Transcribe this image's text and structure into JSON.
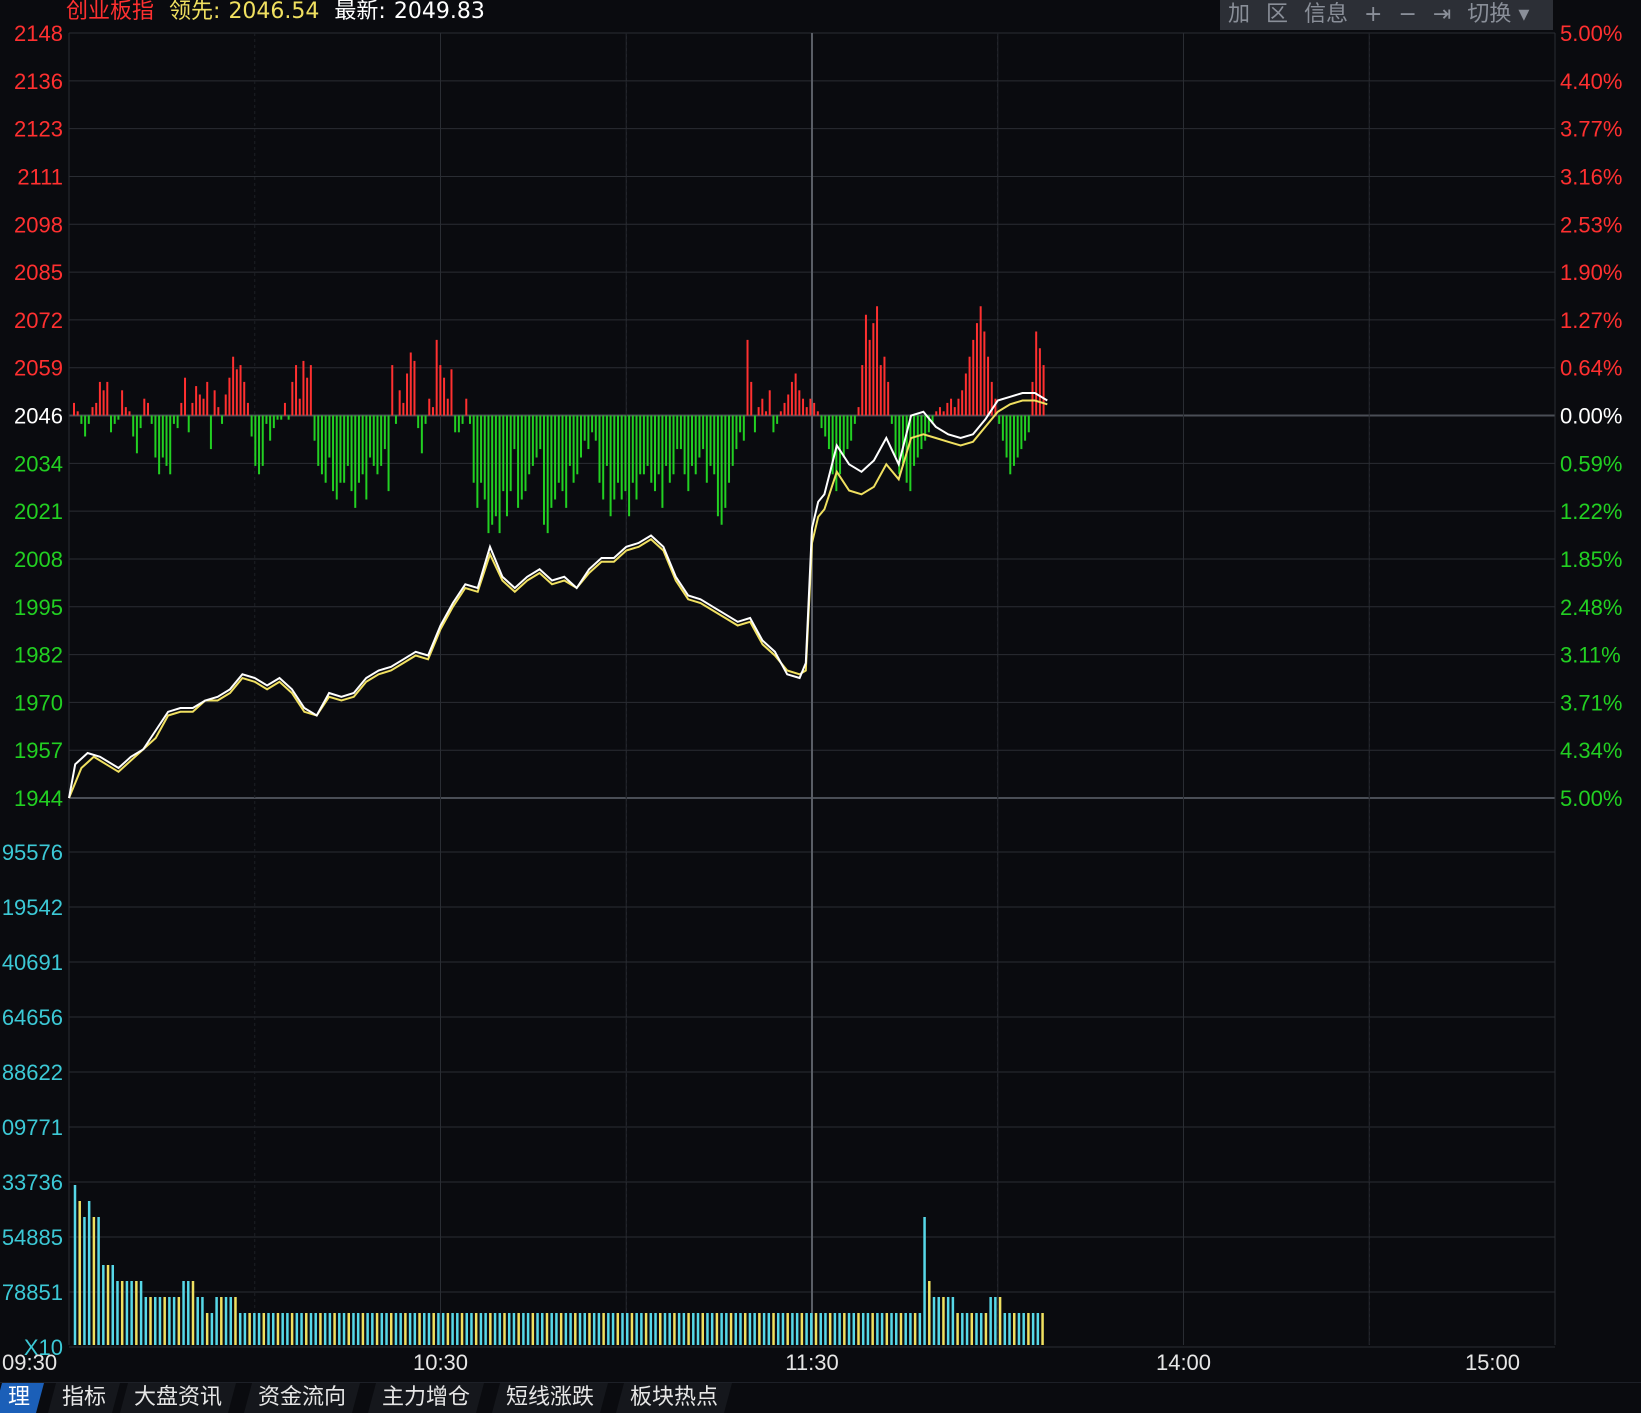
{
  "header": {
    "index_name": "创业板指",
    "lead_label": "领先:",
    "lead_value": "2046.54",
    "latest_label": "最新:",
    "latest_value": "2049.83"
  },
  "toolbar": {
    "items": [
      "加",
      "区",
      "信息",
      "+",
      "−",
      "⇥",
      "切换 ▾"
    ]
  },
  "tabs": [
    "理",
    "指标",
    "大盘资讯",
    "资金流向",
    "主力增仓",
    "短线涨跌",
    "板块热点"
  ],
  "colors": {
    "up": "#ff3030",
    "down": "#22d022",
    "price_line": "#ffffff",
    "lead_line": "#f0e060",
    "volume_cyan": "#57d8e8",
    "volume_yellow": "#f0e060",
    "grid": "#2a2d33",
    "volume_label": "#3cc9d6"
  },
  "chart_data": {
    "type": "line",
    "title": "创业板指",
    "price_axis_left": [
      "2148",
      "2136",
      "2123",
      "2111",
      "2098",
      "2085",
      "2072",
      "2059",
      "2046",
      "2034",
      "2021",
      "2008",
      "1995",
      "1982",
      "1970",
      "1957",
      "1944"
    ],
    "pct_axis_right": [
      "5.00%",
      "4.40%",
      "3.77%",
      "3.16%",
      "2.53%",
      "1.90%",
      "1.27%",
      "0.64%",
      "0.00%",
      "0.59%",
      "1.22%",
      "1.85%",
      "2.48%",
      "3.11%",
      "3.71%",
      "4.34%",
      "5.00%"
    ],
    "volume_axis": [
      "95576",
      "19542",
      "40691",
      "64656",
      "88622",
      "09771",
      "33736",
      "54885",
      "78851",
      "X10"
    ],
    "x_ticks": [
      "09:30",
      "10:30",
      "11:30",
      "14:00",
      "15:00"
    ],
    "price_range": [
      1944,
      2148
    ],
    "prev_close": 2046,
    "grid": true,
    "price_series": {
      "name": "最新",
      "minutes": [
        0,
        1,
        3,
        5,
        8,
        10,
        12,
        14,
        16,
        18,
        20,
        22,
        24,
        26,
        28,
        30,
        32,
        34,
        36,
        38,
        40,
        42,
        44,
        46,
        48,
        50,
        52,
        54,
        56,
        58,
        60,
        62,
        64,
        66,
        68,
        70,
        72,
        74,
        76,
        78,
        80,
        82,
        84,
        86,
        88,
        90,
        92,
        94,
        96,
        98,
        100,
        102,
        104,
        106,
        108,
        110,
        112,
        114,
        116,
        118,
        119,
        120,
        121,
        122,
        124,
        126,
        128,
        130,
        132,
        134,
        136,
        138,
        140,
        142,
        144,
        146,
        148,
        150,
        152,
        154,
        156,
        158
      ],
      "values": [
        1944,
        1953,
        1956,
        1955,
        1952,
        1955,
        1957,
        1962,
        1967,
        1968,
        1968,
        1970,
        1971,
        1973,
        1977,
        1976,
        1974,
        1976,
        1973,
        1968,
        1966,
        1972,
        1971,
        1972,
        1976,
        1978,
        1979,
        1981,
        1983,
        1982,
        1990,
        1996,
        2001,
        2000,
        2011,
        2003,
        2000,
        2003,
        2005,
        2002,
        2003,
        2000,
        2005,
        2008,
        2008,
        2011,
        2012,
        2014,
        2011,
        2003,
        1998,
        1997,
        1995,
        1993,
        1991,
        1992,
        1986,
        1983,
        1977,
        1976,
        1980,
        2016,
        2023,
        2025,
        2038,
        2033,
        2031,
        2034,
        2040,
        2033,
        2046,
        2047,
        2043,
        2041,
        2040,
        2041,
        2045,
        2050,
        2051,
        2052,
        2052,
        2050
      ]
    },
    "lead_series": {
      "name": "领先",
      "minutes": [
        0,
        2,
        4,
        6,
        8,
        10,
        12,
        14,
        16,
        18,
        20,
        22,
        24,
        26,
        28,
        30,
        32,
        34,
        36,
        38,
        40,
        42,
        44,
        46,
        48,
        50,
        52,
        54,
        56,
        58,
        60,
        62,
        64,
        66,
        68,
        70,
        72,
        74,
        76,
        78,
        80,
        82,
        84,
        86,
        88,
        90,
        92,
        94,
        96,
        98,
        100,
        102,
        104,
        106,
        108,
        110,
        112,
        114,
        116,
        118,
        119,
        120,
        121,
        122,
        124,
        126,
        128,
        130,
        132,
        134,
        136,
        138,
        140,
        142,
        144,
        146,
        148,
        150,
        152,
        154,
        156,
        158
      ],
      "values": [
        1944,
        1952,
        1955,
        1953,
        1951,
        1954,
        1957,
        1960,
        1966,
        1967,
        1967,
        1970,
        1970,
        1972,
        1976,
        1975,
        1973,
        1975,
        1972,
        1967,
        1966,
        1971,
        1970,
        1971,
        1975,
        1977,
        1978,
        1980,
        1982,
        1981,
        1989,
        1995,
        2000,
        1999,
        2009,
        2002,
        1999,
        2002,
        2004,
        2001,
        2002,
        2000,
        2004,
        2007,
        2007,
        2010,
        2011,
        2013,
        2010,
        2002,
        1997,
        1996,
        1994,
        1992,
        1990,
        1991,
        1985,
        1982,
        1978,
        1977,
        1978,
        2012,
        2019,
        2021,
        2031,
        2026,
        2025,
        2027,
        2033,
        2029,
        2040,
        2041,
        2040,
        2039,
        2038,
        2039,
        2043,
        2047,
        2049,
        2050,
        2050,
        2049
      ]
    },
    "strength_bars": [
      3,
      1,
      -2,
      -5,
      -2,
      2,
      3,
      8,
      6,
      8,
      -4,
      -2,
      -1,
      6,
      2,
      1,
      -5,
      -9,
      -3,
      4,
      3,
      -2,
      -10,
      -14,
      -10,
      -12,
      -14,
      -2,
      -3,
      3,
      9,
      -4,
      3,
      7,
      5,
      4,
      8,
      -8,
      6,
      2,
      -2,
      5,
      9,
      14,
      11,
      12,
      8,
      3,
      -5,
      -12,
      -14,
      -12,
      -2,
      -6,
      -3,
      -1,
      -1,
      3,
      -1,
      8,
      12,
      4,
      13,
      9,
      12,
      -6,
      -12,
      -14,
      -16,
      -10,
      -18,
      -20,
      -16,
      -16,
      -12,
      -18,
      -22,
      -16,
      -14,
      -20,
      -10,
      -12,
      -14,
      -12,
      -8,
      -18,
      12,
      -2,
      6,
      3,
      10,
      15,
      13,
      -3,
      -9,
      -2,
      4,
      2,
      18,
      12,
      9,
      4,
      11,
      -4,
      -4,
      -2,
      4,
      -2,
      -16,
      -22,
      -16,
      -20,
      -28,
      -26,
      -24,
      -28,
      -18,
      -24,
      -18,
      -8,
      -22,
      -20,
      -18,
      -14,
      -12,
      -10,
      -8,
      -26,
      -28,
      -22,
      -20,
      -16,
      -18,
      -22,
      -12,
      -16,
      -14,
      -10,
      -6,
      -8,
      -4,
      -6,
      -16,
      -20,
      -12,
      -24,
      -20,
      -16,
      -20,
      -18,
      -24,
      -16,
      -20,
      -14,
      -14,
      -12,
      -16,
      -18,
      -14,
      -22,
      -12,
      -16,
      -14,
      -8,
      -8,
      -14,
      -18,
      -12,
      -14,
      -10,
      -8,
      -16,
      -12,
      -14,
      -24,
      -26,
      -22,
      -16,
      -12,
      -8,
      -4,
      -6,
      18,
      8,
      -4,
      2,
      4,
      1,
      6,
      -4,
      -2,
      1,
      3,
      5,
      8,
      10,
      6,
      4,
      2,
      4,
      3,
      1,
      -3,
      -5,
      -8,
      -14,
      -18,
      -14,
      -10,
      -8,
      -6,
      -2,
      2,
      12,
      24,
      18,
      22,
      26,
      12,
      14,
      8,
      -2,
      -10,
      -14,
      -12,
      -16,
      -18,
      -12,
      -10,
      -8,
      -6,
      -4,
      -2,
      1,
      2,
      1,
      3,
      4,
      2,
      4,
      6,
      10,
      14,
      18,
      22,
      26,
      20,
      14,
      8,
      4,
      -2,
      -6,
      -10,
      -14,
      -12,
      -10,
      -8,
      -6,
      -4,
      8,
      20,
      16,
      12
    ],
    "volume_bars": [
      10,
      9,
      8,
      9,
      8,
      8,
      5,
      5,
      5,
      4,
      4,
      4,
      4,
      4,
      4,
      3,
      3,
      3,
      3,
      3,
      3,
      3,
      3,
      4,
      4,
      4,
      3,
      3,
      2,
      2,
      3,
      3,
      3,
      3,
      3,
      2,
      2,
      2,
      2,
      2,
      2,
      2,
      2,
      2,
      2,
      2,
      2,
      2,
      2,
      2,
      2,
      2,
      2,
      2,
      2,
      2,
      2,
      2,
      2,
      2,
      2,
      2,
      2,
      2,
      2,
      2,
      2,
      2,
      2,
      2,
      2,
      2,
      2,
      2,
      2,
      2,
      2,
      2,
      2,
      2,
      2,
      2,
      2,
      2,
      2,
      2,
      2,
      2,
      2,
      2,
      2,
      2,
      2,
      2,
      2,
      2,
      2,
      2,
      2,
      2,
      2,
      2,
      2,
      2,
      2,
      2,
      2,
      2,
      2,
      2,
      2,
      2,
      2,
      2,
      2,
      2,
      2,
      2,
      2,
      2,
      2,
      2,
      2,
      2,
      2,
      2,
      2,
      2,
      2,
      2,
      2,
      2,
      2,
      2,
      2,
      2,
      2,
      2,
      2,
      2,
      2,
      2,
      2,
      2,
      2,
      2,
      2,
      2,
      2,
      2,
      2,
      2,
      2,
      2,
      2,
      2,
      2,
      2,
      2,
      2,
      2,
      2,
      2,
      2,
      2,
      2,
      2,
      2,
      2,
      2,
      2,
      2,
      2,
      2,
      2,
      2,
      2,
      2,
      2,
      2,
      8,
      4,
      3,
      3,
      3,
      3,
      3,
      2,
      2,
      2,
      2,
      2,
      2,
      2,
      3,
      3,
      3,
      2,
      2,
      2,
      2,
      2,
      2,
      2,
      2,
      2
    ]
  }
}
